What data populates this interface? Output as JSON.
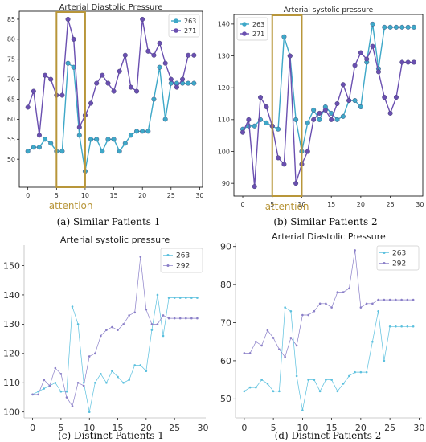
{
  "chart_data": [
    {
      "type": "line",
      "title": "Arterial Diastolic Pressure",
      "caption": "(a) Similar Patients 1",
      "xlim": [
        -1.5,
        30.5
      ],
      "ylim": [
        43,
        87
      ],
      "x_ticks": [
        0,
        5,
        10,
        15,
        20,
        25,
        30
      ],
      "y_ticks": [
        50,
        55,
        60,
        65,
        70,
        75,
        80,
        85
      ],
      "grid": false,
      "legend_position": "top-right",
      "annotation": {
        "label": "attention",
        "x_range": [
          5,
          10
        ],
        "color": "#b8963a"
      },
      "series": [
        {
          "name": "263",
          "color": "#3ea8c8",
          "values": [
            52,
            53,
            53,
            55,
            54,
            52,
            52,
            74,
            73,
            56,
            47,
            55,
            55,
            52,
            55,
            55,
            52,
            54,
            56,
            57,
            57,
            57,
            65,
            73,
            60,
            69,
            69,
            69,
            69,
            69
          ]
        },
        {
          "name": "271",
          "color": "#6a4fb0",
          "values": [
            63,
            67,
            56,
            71,
            70,
            66,
            66,
            85,
            80,
            58,
            61,
            64,
            69,
            71,
            69,
            67,
            72,
            76,
            68,
            67,
            85,
            77,
            76,
            79,
            74,
            70,
            68,
            70,
            76,
            76
          ]
        }
      ]
    },
    {
      "type": "line",
      "title": "Arterial systolic pressure",
      "caption": "(b) Similar Patients 2",
      "xlim": [
        -1.5,
        30.5
      ],
      "ylim": [
        86,
        143
      ],
      "x_ticks": [
        0,
        5,
        10,
        15,
        20,
        25,
        30
      ],
      "y_ticks": [
        90,
        100,
        110,
        120,
        130,
        140
      ],
      "grid": false,
      "legend_position": "top-left",
      "annotation": {
        "label": "attention",
        "x_range": [
          5,
          10
        ],
        "color": "#b8963a"
      },
      "series": [
        {
          "name": "263",
          "color": "#3ea8c8",
          "values": [
            107,
            108,
            108,
            110,
            109,
            108,
            107,
            136,
            130,
            110,
            100,
            109,
            113,
            110,
            114,
            112,
            110,
            111,
            116,
            116,
            114,
            128,
            140,
            126,
            139,
            139,
            139,
            139,
            139,
            139
          ]
        },
        {
          "name": "271",
          "color": "#6a4fb0",
          "values": [
            106,
            110,
            89,
            117,
            114,
            108,
            98,
            96,
            130,
            90,
            96,
            100,
            110,
            112,
            113,
            110,
            115,
            121,
            116,
            127,
            131,
            129,
            133,
            125,
            117,
            112,
            117,
            128,
            128,
            128
          ]
        }
      ]
    },
    {
      "type": "line",
      "title": "Arterial systolic pressure",
      "caption": "(c) Distinct Patients 1",
      "xlim": [
        -1.5,
        30.5
      ],
      "ylim": [
        98,
        157
      ],
      "x_ticks": [
        0,
        5,
        10,
        15,
        20,
        25,
        30
      ],
      "y_ticks": [
        100,
        110,
        120,
        130,
        140,
        150
      ],
      "grid": false,
      "legend_position": "top-right",
      "series": [
        {
          "name": "263",
          "color": "#5bc0de",
          "values": [
            106,
            107,
            108,
            109,
            110,
            107,
            107,
            136,
            130,
            110,
            100,
            110,
            113,
            110,
            114,
            112,
            110,
            111,
            116,
            116,
            114,
            128,
            140,
            126,
            139,
            139,
            139,
            139,
            139,
            139
          ]
        },
        {
          "name": "292",
          "color": "#8a7fc8",
          "values": [
            106,
            106,
            111,
            109,
            115,
            113,
            105,
            102,
            110,
            109,
            119,
            120,
            126,
            128,
            129,
            128,
            130,
            133,
            134,
            153,
            135,
            130,
            130,
            133,
            132,
            132,
            132,
            132,
            132,
            132
          ]
        }
      ]
    },
    {
      "type": "line",
      "title": "Arterial Diastolic Pressure",
      "caption": "(d) Distinct Patients 2",
      "xlim": [
        -1.5,
        30.5
      ],
      "ylim": [
        45,
        91
      ],
      "x_ticks": [
        0,
        5,
        10,
        15,
        20,
        25,
        30
      ],
      "y_ticks": [
        50,
        60,
        70,
        80,
        90
      ],
      "grid": false,
      "legend_position": "top-right",
      "series": [
        {
          "name": "263",
          "color": "#5bc0de",
          "values": [
            52,
            53,
            53,
            55,
            54,
            52,
            52,
            74,
            73,
            56,
            47,
            55,
            55,
            52,
            55,
            55,
            52,
            54,
            56,
            57,
            57,
            57,
            65,
            73,
            60,
            69,
            69,
            69,
            69,
            69
          ]
        },
        {
          "name": "292",
          "color": "#8a7fc8",
          "values": [
            62,
            62,
            65,
            64,
            68,
            66,
            63,
            61,
            66,
            64,
            72,
            72,
            73,
            75,
            75,
            74,
            78,
            78,
            79,
            89,
            74,
            75,
            75,
            76,
            76,
            76,
            76,
            76,
            76,
            76
          ]
        }
      ]
    }
  ]
}
